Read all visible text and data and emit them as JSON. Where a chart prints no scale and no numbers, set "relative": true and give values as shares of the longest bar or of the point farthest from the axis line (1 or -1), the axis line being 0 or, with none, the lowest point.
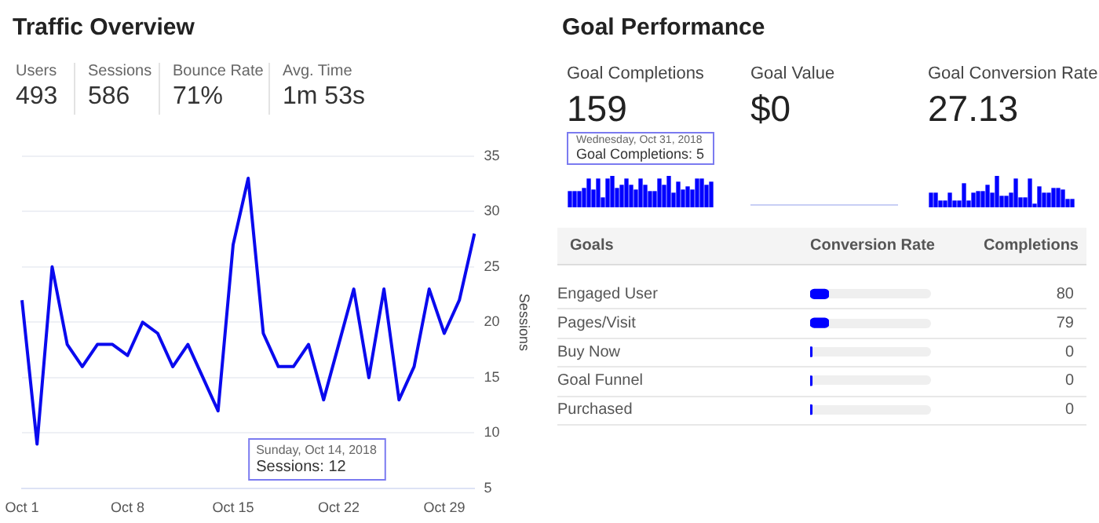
{
  "chart_data": [
    {
      "type": "other",
      "title": "Traffic Overview",
      "annotations": [
        "Users",
        "493",
        "Sessions",
        "586",
        "Bounce Rate",
        "71%",
        "Avg. Time",
        "1m 53s"
      ]
    },
    {
      "type": "line",
      "ylabel": "Sessions",
      "categories": [
        "Oct 1",
        null,
        null,
        null,
        null,
        null,
        null,
        "Oct 8",
        null,
        null,
        null,
        null,
        null,
        null,
        "Oct 15",
        null,
        null,
        null,
        null,
        null,
        null,
        "Oct 22",
        null,
        null,
        null,
        null,
        null,
        null,
        "Oct 29",
        null,
        null
      ],
      "series": [
        {
          "color": "#0a0aee",
          "values": [
            22,
            9,
            25,
            18,
            16,
            18,
            18,
            17,
            20,
            19,
            16,
            18,
            15,
            12,
            27,
            33,
            19,
            16,
            16,
            18,
            13,
            18,
            23,
            15,
            23,
            13,
            16,
            23,
            19,
            22,
            28
          ]
        }
      ],
      "ylim": [
        5,
        35
      ],
      "yticks": [
        5,
        10,
        15,
        20,
        25,
        30,
        35
      ],
      "grid": "y",
      "legend": false,
      "marker": "none",
      "annotations": [
        "Sunday, Oct 14, 2018",
        "Sessions: 12"
      ]
    },
    {
      "type": "other",
      "title": "Goal Performance"
    },
    {
      "type": "bar",
      "title": "Goal Completions",
      "subtitle": "159",
      "relative": true,
      "categories": [
        null,
        null,
        null,
        null,
        null,
        null,
        null,
        null,
        null,
        null,
        null,
        null,
        null,
        null,
        null,
        null,
        null,
        null,
        null,
        null,
        null,
        null,
        null,
        null,
        null,
        null,
        null,
        null,
        null,
        null,
        null
      ],
      "series": [
        {
          "color": "#0000ff",
          "values": [
            0.5,
            0.5,
            0.5,
            0.6,
            0.9,
            0.55,
            0.9,
            0.3,
            0.9,
            1,
            0.6,
            0.7,
            0.9,
            0.7,
            0.55,
            0.9,
            0.7,
            0.5,
            0.5,
            0.9,
            0.7,
            1,
            0.45,
            0.8,
            0.55,
            0.65,
            0.55,
            0.9,
            0.9,
            0.7,
            0.8
          ]
        }
      ],
      "annotations": [
        "Wednesday, Oct 31, 2018",
        "Goal Completions: 5"
      ]
    },
    {
      "type": "other",
      "title": "Goal Value",
      "subtitle": "$0"
    },
    {
      "type": "bar",
      "title": "Goal Conversion Rate",
      "subtitle": "27.13",
      "relative": true,
      "categories": [
        null,
        null,
        null,
        null,
        null,
        null,
        null,
        null,
        null,
        null,
        null,
        null,
        null,
        null,
        null,
        null,
        null,
        null,
        null,
        null,
        null,
        null,
        null,
        null,
        null,
        null,
        null,
        null,
        null,
        null,
        null
      ],
      "series": [
        {
          "color": "#0000ff",
          "values": [
            0.45,
            0.45,
            0.2,
            0.2,
            0.45,
            0.2,
            0.2,
            0.75,
            0.2,
            0.45,
            0.5,
            0.5,
            0.7,
            0.45,
            1,
            0.35,
            0.35,
            0.45,
            0.9,
            0.3,
            0.3,
            0.9,
            0.1,
            0.65,
            0.45,
            0.45,
            0.6,
            0.6,
            0.55,
            0.25,
            0.25
          ]
        }
      ]
    },
    {
      "type": "bar",
      "orientation": "horizontal",
      "relative": true,
      "ylabel": "Goals",
      "xlabel": "Conversion Rate",
      "categories": [
        "Engaged User",
        "Pages/Visit",
        "Buy Now",
        "Goal Funnel",
        "Purchased"
      ],
      "series": [
        {
          "color": "#0000ff",
          "values": [
            1,
            1,
            0.1,
            0.1,
            0.1
          ]
        }
      ],
      "annotations": [
        "Completions",
        "80",
        "79",
        "0",
        "0",
        "0"
      ]
    }
  ]
}
